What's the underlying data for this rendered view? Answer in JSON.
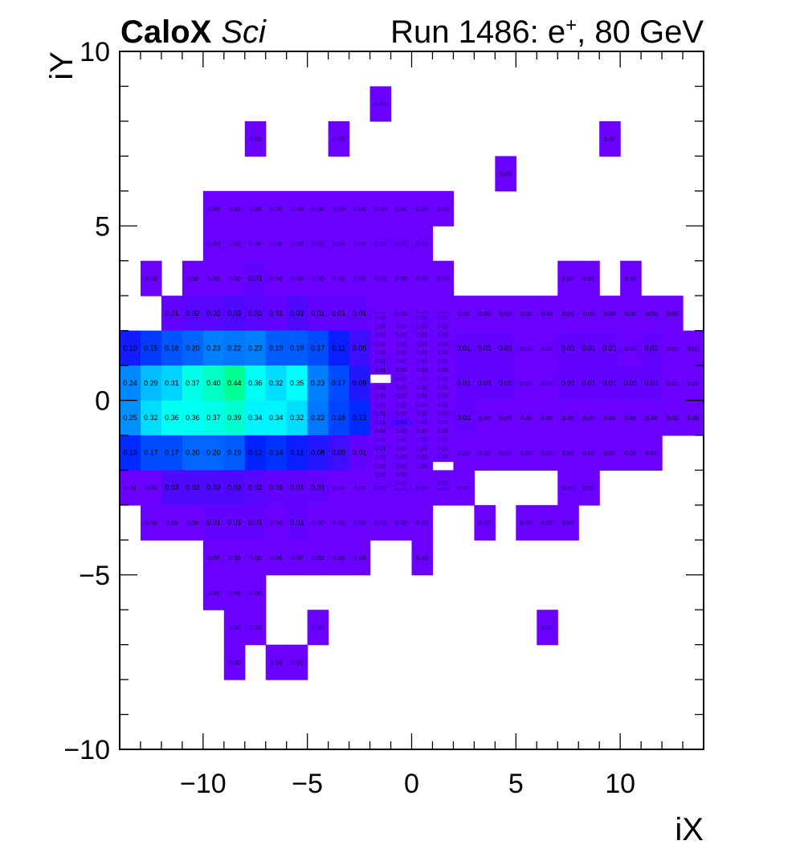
{
  "header": {
    "brand_bold": "CaloX",
    "brand_italic": "Sci",
    "run_prefix": "Run 1486: e",
    "run_sup": "+",
    "run_suffix": ", 80 GeV"
  },
  "chart_data": {
    "type": "heatmap",
    "xlabel": "iX",
    "ylabel": "iY",
    "xlim": [
      -14,
      14
    ],
    "ylim": [
      -10,
      10
    ],
    "xticks": [
      -10,
      -5,
      0,
      5,
      10
    ],
    "xtick_labels": [
      "−10",
      "−5",
      "0",
      "5",
      "10"
    ],
    "yticks": [
      -10,
      -5,
      0,
      5,
      10
    ],
    "ytick_labels": [
      "−10",
      "−5",
      "0",
      "5",
      "10"
    ],
    "grid": false,
    "value_label_format": "0.00",
    "colors": {
      "low": "#6a00ff",
      "mid1": "#0022ff",
      "mid2": "#0090ff",
      "high1": "#00ffff",
      "high2": "#00ff88"
    },
    "rows": [
      {
        "y": 8,
        "cells": [
          [
            -2,
            0.0
          ]
        ]
      },
      {
        "y": 7,
        "cells": [
          [
            -8,
            0.0
          ],
          [
            -4,
            0.0
          ],
          [
            9,
            0.0
          ]
        ]
      },
      {
        "y": 6,
        "cells": [
          [
            4,
            0.0
          ]
        ]
      },
      {
        "y": 5,
        "cells": [
          [
            -10,
            0.0
          ],
          [
            -9,
            0.0
          ],
          [
            -8,
            0.0
          ],
          [
            -7,
            0.0
          ],
          [
            -6,
            0.0
          ],
          [
            -5,
            0.0
          ],
          [
            -4,
            0.0
          ],
          [
            -3,
            0.0
          ],
          [
            -2,
            0.0
          ],
          [
            -1,
            0.0
          ],
          [
            0,
            0.0
          ],
          [
            1,
            0.0
          ]
        ]
      },
      {
        "y": 4,
        "cells": [
          [
            -10,
            0.0
          ],
          [
            -9,
            0.0
          ],
          [
            -8,
            0.0
          ],
          [
            -7,
            0.0
          ],
          [
            -6,
            0.0
          ],
          [
            -5,
            0.0
          ],
          [
            -4,
            0.0
          ],
          [
            -3,
            0.0
          ],
          [
            -2,
            0.0
          ],
          [
            -1,
            0.0
          ],
          [
            0,
            0.0
          ]
        ]
      },
      {
        "y": 3,
        "cells": [
          [
            -13,
            0.0
          ],
          [
            -11,
            0.0
          ],
          [
            -10,
            0.0
          ],
          [
            -9,
            0.0
          ],
          [
            -8,
            0.01
          ],
          [
            -7,
            0.0
          ],
          [
            -6,
            0.0
          ],
          [
            -5,
            0.0
          ],
          [
            -4,
            0.0
          ],
          [
            -3,
            0.0
          ],
          [
            -2,
            0.0
          ],
          [
            -1,
            0.0
          ],
          [
            0,
            0.0
          ],
          [
            1,
            0.0
          ],
          [
            7,
            0.0
          ],
          [
            8,
            0.0
          ],
          [
            10,
            0.0
          ]
        ]
      },
      {
        "y": 2,
        "cells": [
          [
            -12,
            0.01
          ],
          [
            -11,
            0.02
          ],
          [
            -10,
            0.02
          ],
          [
            -9,
            0.03
          ],
          [
            -8,
            0.02
          ],
          [
            -7,
            0.01
          ],
          [
            -6,
            0.03
          ],
          [
            -5,
            0.01
          ],
          [
            -4,
            0.01
          ],
          [
            -3,
            0.01
          ],
          [
            -2,
            0.0
          ],
          [
            -1,
            0.0
          ],
          [
            0,
            0.0
          ],
          [
            1,
            0.0
          ],
          [
            2,
            0.0
          ],
          [
            3,
            0.0
          ],
          [
            4,
            0.0
          ],
          [
            5,
            0.0
          ],
          [
            6,
            0.0
          ],
          [
            7,
            0.0
          ],
          [
            8,
            0.0
          ],
          [
            9,
            0.0
          ],
          [
            10,
            0.0
          ],
          [
            11,
            0.0
          ],
          [
            12,
            0.0
          ]
        ]
      },
      {
        "y": 1,
        "cells": [
          [
            -14,
            0.1
          ],
          [
            -13,
            0.15
          ],
          [
            -12,
            0.18
          ],
          [
            -11,
            0.2
          ],
          [
            -10,
            0.23
          ],
          [
            -9,
            0.22
          ],
          [
            -8,
            0.23
          ],
          [
            -7,
            0.19
          ],
          [
            -6,
            0.19
          ],
          [
            -5,
            0.17
          ],
          [
            -4,
            0.11
          ],
          [
            -3,
            0.05
          ],
          [
            2,
            0.01
          ],
          [
            3,
            0.01
          ],
          [
            4,
            0.01
          ],
          [
            5,
            0.0
          ],
          [
            6,
            0.0
          ],
          [
            7,
            0.01
          ],
          [
            8,
            0.01
          ],
          [
            9,
            0.01
          ],
          [
            10,
            0.0
          ],
          [
            11,
            0.01
          ],
          [
            12,
            0.0
          ],
          [
            13,
            0.0
          ]
        ]
      },
      {
        "y": 0,
        "cells": [
          [
            -14,
            0.24
          ],
          [
            -13,
            0.29
          ],
          [
            -12,
            0.31
          ],
          [
            -11,
            0.37
          ],
          [
            -10,
            0.4
          ],
          [
            -9,
            0.44
          ],
          [
            -8,
            0.36
          ],
          [
            -7,
            0.32
          ],
          [
            -6,
            0.35
          ],
          [
            -5,
            0.23
          ],
          [
            -4,
            0.17
          ],
          [
            -3,
            0.08
          ],
          [
            2,
            0.01
          ],
          [
            3,
            0.01
          ],
          [
            4,
            0.01
          ],
          [
            5,
            0.0
          ],
          [
            6,
            0.0
          ],
          [
            7,
            0.01
          ],
          [
            8,
            0.01
          ],
          [
            9,
            0.01
          ],
          [
            10,
            0.01
          ],
          [
            11,
            0.01
          ],
          [
            12,
            0.0
          ],
          [
            13,
            0.0
          ]
        ]
      },
      {
        "y": -1,
        "cells": [
          [
            -14,
            0.25
          ],
          [
            -13,
            0.32
          ],
          [
            -12,
            0.36
          ],
          [
            -11,
            0.36
          ],
          [
            -10,
            0.37
          ],
          [
            -9,
            0.39
          ],
          [
            -8,
            0.34
          ],
          [
            -7,
            0.34
          ],
          [
            -6,
            0.32
          ],
          [
            -5,
            0.22
          ],
          [
            -4,
            0.16
          ],
          [
            -3,
            0.13
          ],
          [
            2,
            0.01
          ],
          [
            3,
            0.0
          ],
          [
            4,
            0.0
          ],
          [
            5,
            0.0
          ],
          [
            6,
            0.0
          ],
          [
            7,
            0.0
          ],
          [
            8,
            0.0
          ],
          [
            9,
            0.0
          ],
          [
            10,
            0.0
          ],
          [
            11,
            0.0
          ],
          [
            12,
            0.0
          ],
          [
            13,
            0.0
          ]
        ]
      },
      {
        "y": -2,
        "cells": [
          [
            -14,
            0.13
          ],
          [
            -13,
            0.17
          ],
          [
            -12,
            0.17
          ],
          [
            -11,
            0.2
          ],
          [
            -10,
            0.2
          ],
          [
            -9,
            0.19
          ],
          [
            -8,
            0.12
          ],
          [
            -7,
            0.14
          ],
          [
            -6,
            0.11
          ],
          [
            -5,
            0.08
          ],
          [
            -4,
            0.05
          ],
          [
            -3,
            0.01
          ],
          [
            2,
            0.0
          ],
          [
            3,
            0.0
          ],
          [
            4,
            0.0
          ],
          [
            5,
            0.0
          ],
          [
            6,
            0.0
          ],
          [
            7,
            0.0
          ],
          [
            8,
            0.0
          ],
          [
            9,
            0.0
          ],
          [
            10,
            0.0
          ],
          [
            11,
            0.0
          ]
        ]
      },
      {
        "y": -3,
        "cells": [
          [
            -14,
            0.0
          ],
          [
            -13,
            0.0
          ],
          [
            -12,
            0.03
          ],
          [
            -11,
            0.03
          ],
          [
            -10,
            0.03
          ],
          [
            -9,
            0.03
          ],
          [
            -8,
            0.02
          ],
          [
            -7,
            0.01
          ],
          [
            -6,
            0.01
          ],
          [
            -5,
            0.01
          ],
          [
            -4,
            0.0
          ],
          [
            -3,
            0.0
          ],
          [
            -2,
            0.0
          ],
          [
            -1,
            0.0
          ],
          [
            0,
            0.0
          ],
          [
            1,
            0.0
          ],
          [
            2,
            0.0
          ],
          [
            7,
            0.0
          ],
          [
            8,
            0.0
          ]
        ]
      },
      {
        "y": -4,
        "cells": [
          [
            -13,
            0.0
          ],
          [
            -12,
            0.0
          ],
          [
            -11,
            0.0
          ],
          [
            -10,
            0.01
          ],
          [
            -9,
            0.01
          ],
          [
            -8,
            0.01
          ],
          [
            -7,
            0.0
          ],
          [
            -6,
            0.01
          ],
          [
            -5,
            0.0
          ],
          [
            -4,
            0.0
          ],
          [
            -3,
            0.0
          ],
          [
            -2,
            0.0
          ],
          [
            -1,
            0.0
          ],
          [
            0,
            0.0
          ],
          [
            3,
            0.0
          ],
          [
            5,
            0.0
          ],
          [
            6,
            0.0
          ],
          [
            7,
            0.0
          ]
        ]
      },
      {
        "y": -5,
        "cells": [
          [
            -10,
            0.0
          ],
          [
            -9,
            0.0
          ],
          [
            -8,
            0.0
          ],
          [
            -7,
            0.0
          ],
          [
            -6,
            0.0
          ],
          [
            -5,
            0.0
          ],
          [
            -4,
            0.0
          ],
          [
            -3,
            0.0
          ],
          [
            0,
            0.0
          ]
        ]
      },
      {
        "y": -6,
        "cells": [
          [
            -10,
            0.0
          ],
          [
            -9,
            0.0
          ],
          [
            -8,
            0.0
          ]
        ]
      },
      {
        "y": -7,
        "cells": [
          [
            -9,
            0.0
          ],
          [
            -8,
            0.0
          ],
          [
            -5,
            0.0
          ],
          [
            6,
            0.0
          ]
        ]
      },
      {
        "y": -8,
        "cells": [
          [
            -9,
            0.0
          ],
          [
            -7,
            0.0
          ],
          [
            -6,
            0.0
          ]
        ]
      }
    ],
    "fine_region": {
      "x_range": [
        -2,
        2
      ],
      "y_range": [
        -2.5,
        2.5
      ],
      "subdivision": 5,
      "cols": [
        -2,
        -1,
        0,
        1
      ],
      "rows": [
        [
          0.0,
          null,
          0.0,
          0.0
        ],
        [
          0.0,
          0.0,
          0.0,
          0.0
        ],
        [
          0.0,
          0.0,
          0.0,
          0.0
        ],
        [
          0.0,
          0.0,
          0.0,
          0.0
        ],
        [
          0.0,
          0.0,
          0.0,
          0.0
        ],
        [
          0.01,
          0.0,
          0.0,
          0.0
        ],
        [
          0.01,
          0.0,
          0.0,
          0.0
        ],
        [
          null,
          0.0,
          0.0,
          0.0
        ],
        [
          0.0,
          0.0,
          0.0,
          0.0
        ],
        [
          0.0,
          0.0,
          0.0,
          0.0
        ],
        [
          0.0,
          0.0,
          0.0,
          0.0
        ],
        [
          0.01,
          0.0,
          0.0,
          0.0
        ],
        [
          0.01,
          0.03,
          0.0,
          0.0
        ],
        [
          0.0,
          0.0,
          0.0,
          0.0
        ],
        [
          0.0,
          0.0,
          0.0,
          0.0
        ],
        [
          0.01,
          0.0,
          0.0,
          0.0
        ],
        [
          0.0,
          0.0,
          0.0,
          0.0
        ],
        [
          0.0,
          0.0,
          0.0,
          null
        ],
        [
          0.0,
          0.0,
          null,
          null
        ],
        [
          null,
          0.0,
          null,
          0.0
        ]
      ]
    }
  }
}
